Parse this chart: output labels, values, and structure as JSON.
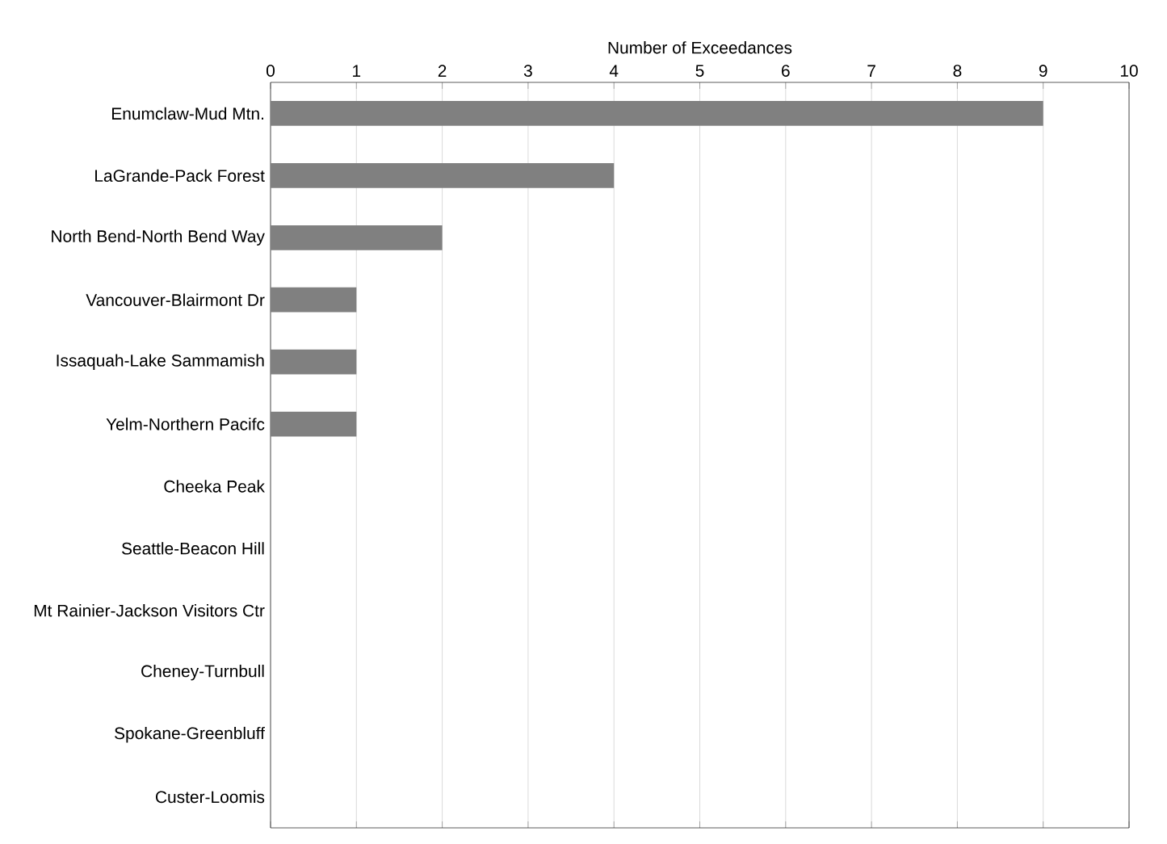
{
  "chart_data": {
    "type": "bar",
    "orientation": "horizontal",
    "xlabel": "Number of Exceedances",
    "categories": [
      "Enumclaw-Mud Mtn.",
      "LaGrande-Pack Forest",
      "North Bend-North Bend Way",
      "Vancouver-Blairmont Dr",
      "Issaquah-Lake Sammamish",
      "Yelm-Northern Pacifc",
      "Cheeka Peak",
      "Seattle-Beacon Hill",
      "Mt Rainier-Jackson Visitors Ctr",
      "Cheney-Turnbull",
      "Spokane-Greenbluff",
      "Custer-Loomis"
    ],
    "values": [
      9,
      4,
      2,
      1,
      1,
      1,
      0,
      0,
      0,
      0,
      0,
      0
    ],
    "color": "#808080",
    "xlim": [
      0,
      10
    ],
    "xticks": [
      0,
      1,
      2,
      3,
      4,
      5,
      6,
      7,
      8,
      9,
      10
    ],
    "grid": "x"
  }
}
